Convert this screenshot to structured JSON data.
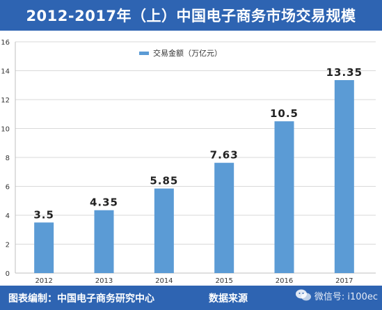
{
  "header": {
    "title": "2012-2017年（上）中国电子商务市场交易规模"
  },
  "footer": {
    "left_text": "图表编制：中国电子商务研究中心",
    "source_label": "数据来源",
    "watermark_text": "微信号: i100ec",
    "watermark_url": "WWW.100EC.CN"
  },
  "colors": {
    "header_bg": "#2e64b2",
    "bar": "#5b9bd5",
    "grid": "#d9d9d9"
  },
  "chart_data": {
    "type": "bar",
    "categories": [
      "2012",
      "2013",
      "2014",
      "2015",
      "2016",
      "2017"
    ],
    "series": [
      {
        "name": "交易金额（万亿元）",
        "values": [
          3.5,
          4.35,
          5.85,
          7.63,
          10.5,
          13.35
        ]
      }
    ],
    "data_labels": [
      "3.5",
      "4.35",
      "5.85",
      "7.63",
      "10.5",
      "13.35"
    ],
    "y_ticks": [
      0,
      2,
      4,
      6,
      8,
      10,
      12,
      14,
      16
    ],
    "ylim": [
      0,
      16
    ],
    "grid": true,
    "legend_position": "top-left"
  }
}
